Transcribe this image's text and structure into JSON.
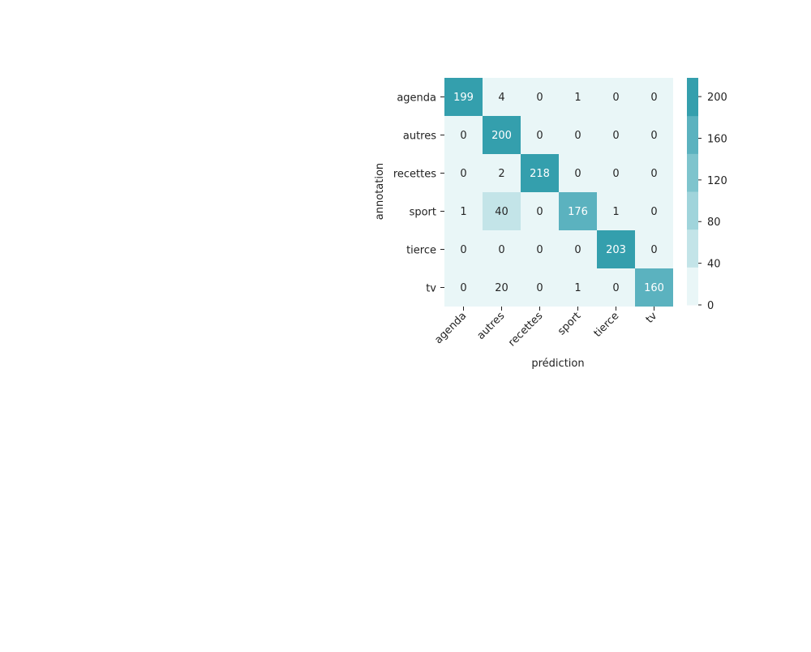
{
  "chart_data": {
    "type": "heatmap",
    "title": "",
    "xlabel": "prédiction",
    "ylabel": "annotation",
    "x_categories": [
      "agenda",
      "autres",
      "recettes",
      "sport",
      "tierce",
      "tv"
    ],
    "y_categories": [
      "agenda",
      "autres",
      "recettes",
      "sport",
      "tierce",
      "tv"
    ],
    "values": [
      [
        199,
        4,
        0,
        1,
        0,
        0
      ],
      [
        0,
        200,
        0,
        0,
        0,
        0
      ],
      [
        0,
        2,
        218,
        0,
        0,
        0
      ],
      [
        1,
        40,
        0,
        176,
        1,
        0
      ],
      [
        0,
        0,
        0,
        0,
        203,
        0
      ],
      [
        0,
        20,
        0,
        1,
        0,
        160
      ]
    ],
    "colorbar": {
      "ticks": [
        0,
        40,
        80,
        120,
        160,
        200
      ],
      "range": [
        0,
        218
      ],
      "colors": [
        "#e9f6f7",
        "#c3e4e8",
        "#a0d4db",
        "#7ec4cd",
        "#5bb2bf",
        "#349fad"
      ]
    },
    "grid": false,
    "legend": "colorbar-right"
  }
}
